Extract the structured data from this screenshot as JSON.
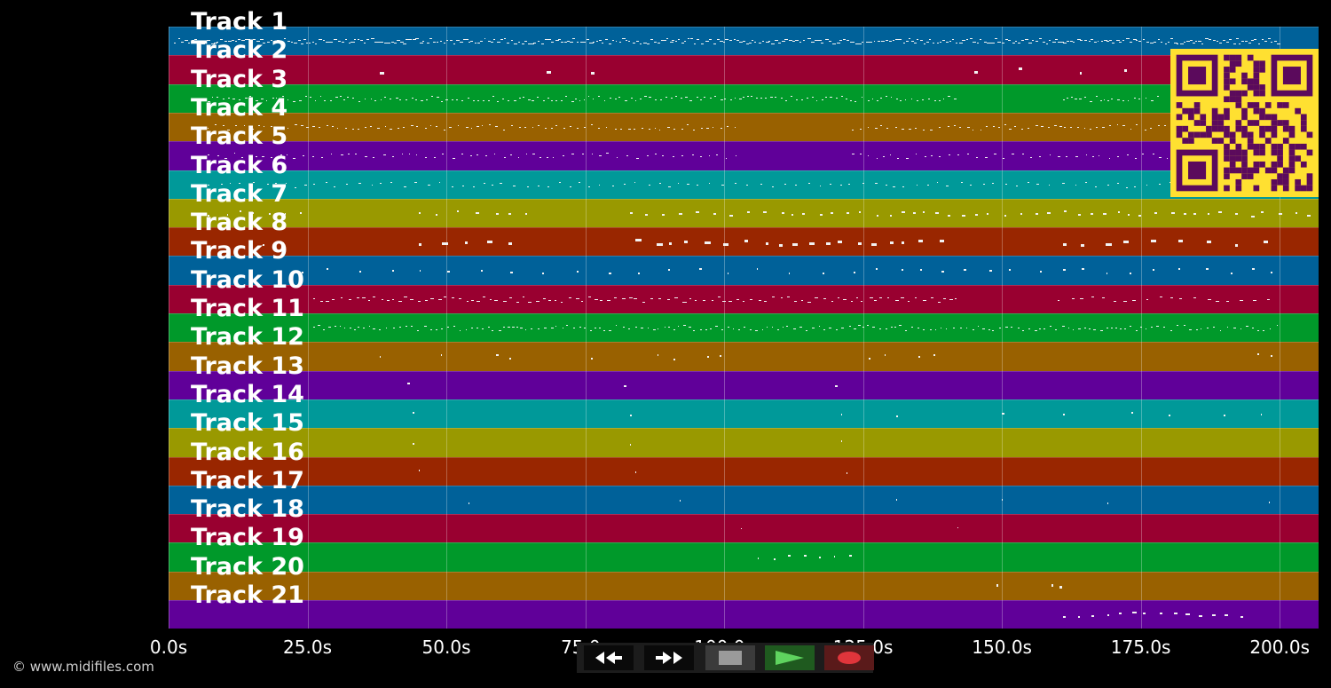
{
  "tracks": [
    {
      "label": "Track 1",
      "color": "#006199"
    },
    {
      "label": "Track 2",
      "color": "#990030"
    },
    {
      "label": "Track 3",
      "color": "#00992a"
    },
    {
      "label": "Track 4",
      "color": "#996100"
    },
    {
      "label": "Track 5",
      "color": "#600099"
    },
    {
      "label": "Track 6",
      "color": "#009999"
    },
    {
      "label": "Track 7",
      "color": "#999900"
    },
    {
      "label": "Track 8",
      "color": "#992600"
    },
    {
      "label": "Track 9",
      "color": "#006199"
    },
    {
      "label": "Track 10",
      "color": "#990030"
    },
    {
      "label": "Track 11",
      "color": "#00992a"
    },
    {
      "label": "Track 12",
      "color": "#996100"
    },
    {
      "label": "Track 13",
      "color": "#600099"
    },
    {
      "label": "Track 14",
      "color": "#009999"
    },
    {
      "label": "Track 15",
      "color": "#999900"
    },
    {
      "label": "Track 16",
      "color": "#992600"
    },
    {
      "label": "Track 17",
      "color": "#006199"
    },
    {
      "label": "Track 18",
      "color": "#990030"
    },
    {
      "label": "Track 19",
      "color": "#00992a"
    },
    {
      "label": "Track 20",
      "color": "#996100"
    },
    {
      "label": "Track 21",
      "color": "#600099"
    }
  ],
  "time_axis": {
    "ticks": [
      "0.0s",
      "25.0s",
      "50.0s",
      "75.0s",
      "100.0s",
      "125.0s",
      "150.0s",
      "175.0s",
      "200.0s"
    ],
    "tick_values": [
      0,
      25,
      50,
      75,
      100,
      125,
      150,
      175,
      200
    ],
    "range": [
      0,
      207
    ]
  },
  "credit": "© www.midifiles.com",
  "transport": {
    "rewind": "rewind-icon",
    "fast_forward": "fast-forward-icon",
    "stop": "stop-icon",
    "play": "play-icon",
    "record": "record-icon"
  },
  "colors": {
    "qr_background": "#ffe031",
    "qr_foreground": "#5b0a5c",
    "note": "#f2f2f2"
  }
}
